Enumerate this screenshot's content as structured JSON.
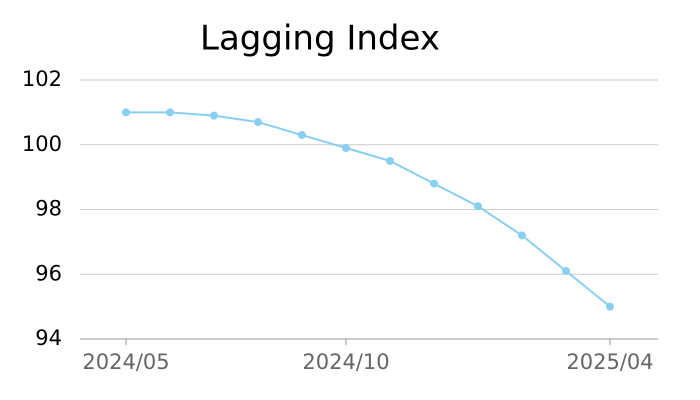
{
  "chart_data": {
    "type": "line",
    "title": "Lagging Index",
    "categories": [
      "2024/05",
      null,
      null,
      null,
      null,
      "2024/10",
      null,
      null,
      null,
      null,
      null,
      "2025/04"
    ],
    "series": [
      {
        "name": "Lagging Index",
        "color": "#89cff0",
        "values": [
          101.0,
          101.0,
          100.9,
          100.7,
          100.3,
          99.9,
          99.5,
          98.8,
          98.1,
          97.2,
          96.1,
          95.0
        ]
      }
    ],
    "ylim": [
      94,
      102
    ],
    "yticks": [
      94,
      96,
      98,
      100,
      102
    ],
    "grid": true
  }
}
